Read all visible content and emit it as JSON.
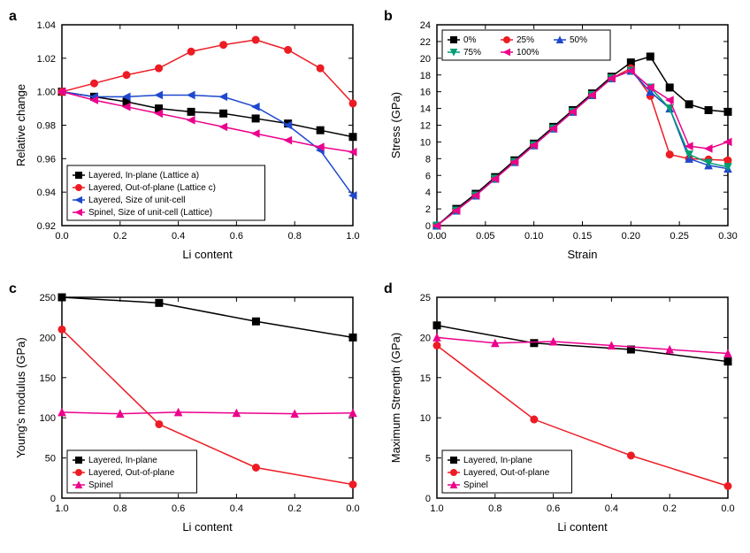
{
  "panels": {
    "a": {
      "label": "a",
      "xlabel": "Li content",
      "ylabel": "Relative change",
      "xlim": [
        0.0,
        1.0
      ],
      "xtick_step": 0.2,
      "ylim": [
        0.92,
        1.04
      ],
      "ytick_step": 0.02,
      "background_color": "#ffffff",
      "legend_pos": "bottom-left",
      "series": [
        {
          "name": "Layered, In-plane (Lattice a)",
          "color": "#000000",
          "marker": "square",
          "x": [
            0.0,
            0.111,
            0.222,
            0.333,
            0.444,
            0.555,
            0.666,
            0.777,
            0.888,
            1.0
          ],
          "y": [
            1.0,
            0.997,
            0.994,
            0.99,
            0.988,
            0.987,
            0.984,
            0.981,
            0.977,
            0.973
          ]
        },
        {
          "name": "Layered, Out-of-plane (Lattice c)",
          "color": "#ed1c24",
          "marker": "circle",
          "x": [
            0.0,
            0.111,
            0.222,
            0.333,
            0.444,
            0.555,
            0.666,
            0.777,
            0.888,
            1.0
          ],
          "y": [
            1.0,
            1.005,
            1.01,
            1.014,
            1.024,
            1.028,
            1.031,
            1.025,
            1.014,
            0.993
          ]
        },
        {
          "name": "Layered, Size of unit-cell",
          "color": "#1f48ce",
          "marker": "triangle-left",
          "x": [
            0.0,
            0.111,
            0.222,
            0.333,
            0.444,
            0.555,
            0.666,
            0.777,
            0.888,
            1.0
          ],
          "y": [
            1.0,
            0.997,
            0.997,
            0.998,
            0.998,
            0.997,
            0.991,
            0.98,
            0.965,
            0.938
          ]
        },
        {
          "name": "Spinel, Size of unit-cell (Lattice)",
          "color": "#ec008c",
          "marker": "triangle-left",
          "x": [
            0.0,
            0.111,
            0.222,
            0.333,
            0.444,
            0.555,
            0.666,
            0.777,
            0.888,
            1.0
          ],
          "y": [
            1.0,
            0.995,
            0.991,
            0.987,
            0.983,
            0.979,
            0.975,
            0.971,
            0.967,
            0.964
          ]
        }
      ]
    },
    "b": {
      "label": "b",
      "xlabel": "Strain",
      "ylabel": "Stress (GPa)",
      "xlim": [
        0.0,
        0.3
      ],
      "xtick_step": 0.05,
      "ylim": [
        0,
        24
      ],
      "ytick_step": 2,
      "legend_pos": "top-left",
      "series": [
        {
          "name": "0%",
          "color": "#000000",
          "marker": "square",
          "x": [
            0.0,
            0.02,
            0.04,
            0.06,
            0.08,
            0.1,
            0.12,
            0.14,
            0.16,
            0.18,
            0.2,
            0.22,
            0.24,
            0.26,
            0.28,
            0.3
          ],
          "y": [
            0.0,
            2.0,
            3.8,
            5.8,
            7.8,
            9.8,
            11.8,
            13.8,
            15.8,
            17.8,
            19.5,
            20.2,
            16.5,
            14.5,
            13.8,
            13.6
          ]
        },
        {
          "name": "25%",
          "color": "#ed1c24",
          "marker": "circle",
          "x": [
            0.0,
            0.02,
            0.04,
            0.06,
            0.08,
            0.1,
            0.12,
            0.14,
            0.16,
            0.18,
            0.2,
            0.22,
            0.24,
            0.26,
            0.28,
            0.3
          ],
          "y": [
            0.0,
            1.8,
            3.6,
            5.6,
            7.6,
            9.6,
            11.6,
            13.6,
            15.6,
            17.6,
            18.8,
            15.5,
            8.5,
            8.0,
            7.9,
            7.8
          ]
        },
        {
          "name": "50%",
          "color": "#1f48ce",
          "marker": "triangle-up",
          "x": [
            0.0,
            0.02,
            0.04,
            0.06,
            0.08,
            0.1,
            0.12,
            0.14,
            0.16,
            0.18,
            0.2,
            0.22,
            0.24,
            0.26,
            0.28,
            0.3
          ],
          "y": [
            0.0,
            1.8,
            3.6,
            5.6,
            7.6,
            9.6,
            11.6,
            13.6,
            15.6,
            17.6,
            18.5,
            16.0,
            14.0,
            8.0,
            7.2,
            6.8
          ]
        },
        {
          "name": "75%",
          "color": "#009e73",
          "marker": "triangle-down",
          "x": [
            0.0,
            0.02,
            0.04,
            0.06,
            0.08,
            0.1,
            0.12,
            0.14,
            0.16,
            0.18,
            0.2,
            0.22,
            0.24,
            0.26,
            0.28,
            0.3
          ],
          "y": [
            0.0,
            1.8,
            3.6,
            5.6,
            7.6,
            9.6,
            11.6,
            13.6,
            15.6,
            17.6,
            18.5,
            16.5,
            14.0,
            8.5,
            7.5,
            7.0
          ]
        },
        {
          "name": "100%",
          "color": "#ec008c",
          "marker": "triangle-left",
          "x": [
            0.0,
            0.02,
            0.04,
            0.06,
            0.08,
            0.1,
            0.12,
            0.14,
            0.16,
            0.18,
            0.2,
            0.22,
            0.24,
            0.26,
            0.28,
            0.3
          ],
          "y": [
            0.0,
            1.8,
            3.6,
            5.6,
            7.6,
            9.6,
            11.6,
            13.6,
            15.6,
            17.6,
            18.5,
            16.5,
            15.0,
            9.5,
            9.2,
            10.0
          ]
        }
      ]
    },
    "c": {
      "label": "c",
      "xlabel": "Li content",
      "ylabel": "Young's modulus (GPa)",
      "xlim": [
        1.0,
        0.0
      ],
      "xtick_step": 0.2,
      "x_reversed": true,
      "ylim": [
        0,
        250
      ],
      "ytick_step": 50,
      "legend_pos": "bottom-left",
      "series": [
        {
          "name": "Layered, In-plane",
          "color": "#000000",
          "marker": "square",
          "x": [
            1.0,
            0.666,
            0.333,
            0.0
          ],
          "y": [
            250,
            243,
            220,
            200
          ]
        },
        {
          "name": "Layered, Out-of-plane",
          "color": "#ed1c24",
          "marker": "circle",
          "x": [
            1.0,
            0.666,
            0.333,
            0.0
          ],
          "y": [
            210,
            92,
            38,
            17
          ]
        },
        {
          "name": "Spinel",
          "color": "#ec008c",
          "marker": "triangle-up",
          "x": [
            1.0,
            0.8,
            0.6,
            0.4,
            0.2,
            0.0
          ],
          "y": [
            107,
            105,
            107,
            106,
            105,
            106
          ]
        }
      ]
    },
    "d": {
      "label": "d",
      "xlabel": "Li content",
      "ylabel": "Maximum Strength (GPa)",
      "xlim": [
        1.0,
        0.0
      ],
      "xtick_step": 0.2,
      "x_reversed": true,
      "ylim": [
        0,
        25
      ],
      "ytick_step": 5,
      "legend_pos": "bottom-left",
      "series": [
        {
          "name": "Layered, In-plane",
          "color": "#000000",
          "marker": "square",
          "x": [
            1.0,
            0.666,
            0.333,
            0.0
          ],
          "y": [
            21.5,
            19.3,
            18.5,
            17.0
          ]
        },
        {
          "name": "Layered, Out-of-plane",
          "color": "#ed1c24",
          "marker": "circle",
          "x": [
            1.0,
            0.666,
            0.333,
            0.0
          ],
          "y": [
            19.0,
            9.8,
            5.3,
            1.5
          ]
        },
        {
          "name": "Spinel",
          "color": "#ec008c",
          "marker": "triangle-up",
          "x": [
            1.0,
            0.8,
            0.6,
            0.4,
            0.2,
            0.0
          ],
          "y": [
            20.0,
            19.3,
            19.5,
            19.0,
            18.5,
            18.0
          ]
        }
      ]
    }
  }
}
